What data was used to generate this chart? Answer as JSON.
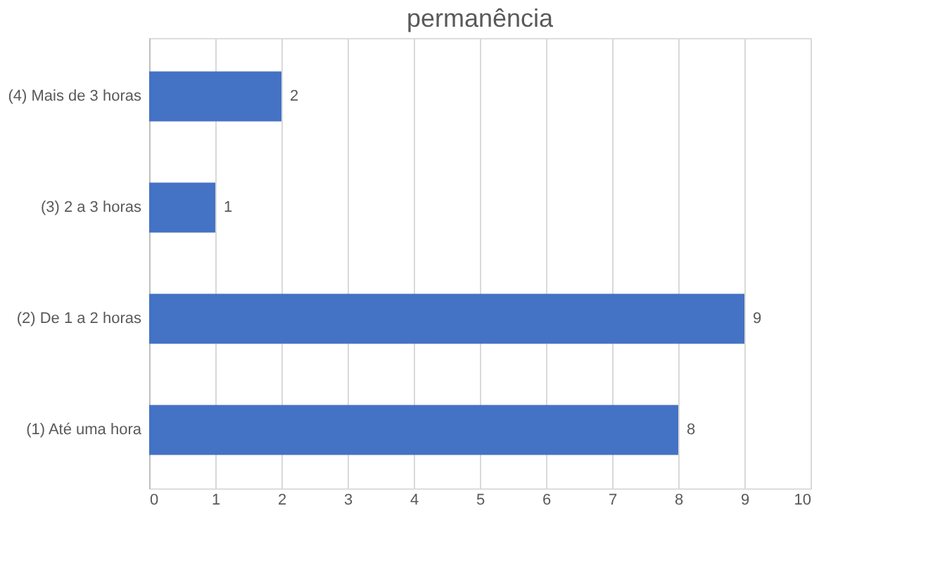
{
  "chart_data": {
    "type": "bar",
    "orientation": "horizontal",
    "title": "permanência",
    "categories": [
      "(4) Mais de 3 horas",
      "(3) 2 a 3 horas",
      "(2) De 1 a 2 horas",
      "(1) Até uma hora"
    ],
    "values": [
      2,
      1,
      9,
      8
    ],
    "color": "#4472c4",
    "xlim": [
      0,
      10
    ],
    "xticks": [
      0,
      1,
      2,
      3,
      4,
      5,
      6,
      7,
      8,
      9,
      10
    ],
    "grid": "x",
    "data_labels": true
  }
}
